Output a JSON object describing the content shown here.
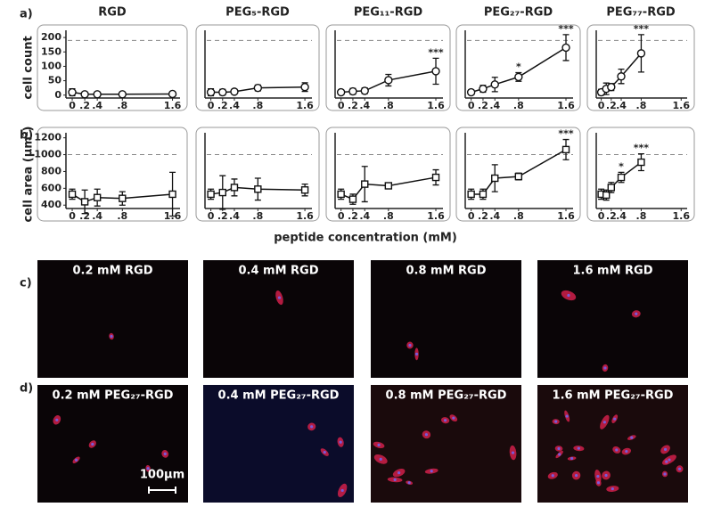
{
  "chart_data": [
    {
      "type": "line",
      "title": "RGD",
      "ylabel": "cell count",
      "marker": "circle",
      "x": [
        0,
        0.2,
        0.4,
        0.8,
        1.6
      ],
      "values": [
        10,
        3,
        3,
        3,
        4
      ],
      "errors": [
        12,
        4,
        3,
        3,
        3
      ],
      "xlim": [
        -0.1,
        1.72
      ],
      "xticks": [
        0,
        {
          "value": 0.2,
          "label": ".2"
        },
        {
          "value": 0.4,
          "label": ".4"
        },
        {
          "value": 0.8,
          "label": ".8"
        },
        1.6
      ],
      "ylim": [
        -10,
        225
      ],
      "yticks": [
        0,
        50,
        100,
        150,
        200
      ],
      "reference_line": 190,
      "annotations": []
    },
    {
      "type": "line",
      "title": "PEG₅-RGD",
      "marker": "circle",
      "x": [
        0,
        0.2,
        0.4,
        0.8,
        1.6
      ],
      "values": [
        10,
        10,
        12,
        25,
        28
      ],
      "errors": [
        12,
        10,
        8,
        10,
        15
      ],
      "xlim": [
        -0.1,
        1.72
      ],
      "xticks": [
        0,
        {
          "value": 0.2,
          "label": ".2"
        },
        {
          "value": 0.4,
          "label": ".4"
        },
        {
          "value": 0.8,
          "label": ".8"
        },
        1.6
      ],
      "ylim": [
        -10,
        225
      ],
      "reference_line": 190,
      "annotations": []
    },
    {
      "type": "line",
      "title": "PEG₁₁-RGD",
      "marker": "circle",
      "x": [
        0,
        0.2,
        0.4,
        0.8,
        1.6
      ],
      "values": [
        10,
        13,
        15,
        52,
        83
      ],
      "errors": [
        8,
        10,
        10,
        20,
        45
      ],
      "xlim": [
        -0.1,
        1.72
      ],
      "xticks": [
        0,
        {
          "value": 0.2,
          "label": ".2"
        },
        {
          "value": 0.4,
          "label": ".4"
        },
        {
          "value": 0.8,
          "label": ".8"
        },
        1.6
      ],
      "ylim": [
        -10,
        225
      ],
      "reference_line": 190,
      "annotations": [
        {
          "at": 4,
          "text": "***"
        }
      ]
    },
    {
      "type": "line",
      "title": "PEG₂₇-RGD",
      "marker": "circle",
      "x": [
        0,
        0.2,
        0.4,
        0.8,
        1.6
      ],
      "values": [
        10,
        22,
        37,
        63,
        165
      ],
      "errors": [
        8,
        12,
        25,
        15,
        45
      ],
      "xlim": [
        -0.1,
        1.72
      ],
      "xticks": [
        0,
        {
          "value": 0.2,
          "label": ".2"
        },
        {
          "value": 0.4,
          "label": ".4"
        },
        {
          "value": 0.8,
          "label": ".8"
        },
        1.6
      ],
      "ylim": [
        -10,
        225
      ],
      "reference_line": 190,
      "annotations": [
        {
          "at": 3,
          "text": "*"
        },
        {
          "at": 4,
          "text": "***"
        }
      ]
    },
    {
      "type": "line",
      "title": "PEG₇₇-RGD",
      "marker": "circle",
      "x": [
        0,
        0.1,
        0.2,
        0.4,
        0.8
      ],
      "values": [
        10,
        22,
        28,
        65,
        145
      ],
      "errors": [
        10,
        20,
        12,
        25,
        65
      ],
      "xlim": [
        -0.1,
        1.72
      ],
      "xticks": [
        0,
        {
          "value": 0.2,
          "label": ".2"
        },
        {
          "value": 0.4,
          "label": ".4"
        },
        {
          "value": 0.8,
          "label": ".8"
        },
        1.6
      ],
      "ylim": [
        -10,
        225
      ],
      "reference_line": 190,
      "annotations": [
        {
          "at": 4,
          "text": "***"
        }
      ]
    },
    {
      "type": "line",
      "ylabel": "cell area (µm²)",
      "marker": "square",
      "x": [
        0,
        0.2,
        0.4,
        0.8,
        1.6
      ],
      "values": [
        530,
        440,
        490,
        480,
        530
      ],
      "errors": [
        60,
        140,
        100,
        80,
        260
      ],
      "xlim": [
        -0.1,
        1.72
      ],
      "xticks": [
        0,
        {
          "value": 0.2,
          "label": ".2"
        },
        {
          "value": 0.4,
          "label": ".4"
        },
        {
          "value": 0.8,
          "label": ".8"
        },
        1.6
      ],
      "ylim": [
        360,
        1260
      ],
      "yticks": [
        400,
        600,
        800,
        1000,
        1200
      ],
      "reference_line": 1000,
      "annotations": []
    },
    {
      "type": "line",
      "marker": "square",
      "x": [
        0,
        0.2,
        0.4,
        0.8,
        1.6
      ],
      "values": [
        530,
        550,
        610,
        590,
        580
      ],
      "errors": [
        60,
        200,
        100,
        130,
        70
      ],
      "xlim": [
        -0.1,
        1.72
      ],
      "xticks": [
        0,
        {
          "value": 0.2,
          "label": ".2"
        },
        {
          "value": 0.4,
          "label": ".4"
        },
        {
          "value": 0.8,
          "label": ".8"
        },
        1.6
      ],
      "ylim": [
        360,
        1260
      ],
      "reference_line": 1000,
      "annotations": []
    },
    {
      "type": "line",
      "marker": "square",
      "x": [
        0,
        0.2,
        0.4,
        0.8,
        1.6
      ],
      "values": [
        530,
        470,
        650,
        630,
        730
      ],
      "errors": [
        60,
        60,
        210,
        20,
        90
      ],
      "xlim": [
        -0.1,
        1.72
      ],
      "xticks": [
        0,
        {
          "value": 0.2,
          "label": ".2"
        },
        {
          "value": 0.4,
          "label": ".4"
        },
        {
          "value": 0.8,
          "label": ".8"
        },
        1.6
      ],
      "ylim": [
        360,
        1260
      ],
      "reference_line": 1000,
      "annotations": []
    },
    {
      "type": "line",
      "marker": "square",
      "x": [
        0,
        0.2,
        0.4,
        0.8,
        1.6
      ],
      "values": [
        530,
        530,
        720,
        740,
        1060
      ],
      "errors": [
        60,
        60,
        160,
        40,
        120
      ],
      "xlim": [
        -0.1,
        1.72
      ],
      "xticks": [
        0,
        {
          "value": 0.2,
          "label": ".2"
        },
        {
          "value": 0.4,
          "label": ".4"
        },
        {
          "value": 0.8,
          "label": ".8"
        },
        1.6
      ],
      "ylim": [
        360,
        1260
      ],
      "reference_line": 1000,
      "annotations": [
        {
          "at": 4,
          "text": "***"
        }
      ]
    },
    {
      "type": "line",
      "marker": "square",
      "x": [
        0,
        0.1,
        0.2,
        0.4,
        0.8
      ],
      "values": [
        530,
        520,
        610,
        730,
        910
      ],
      "errors": [
        60,
        60,
        60,
        60,
        100
      ],
      "xlim": [
        -0.1,
        1.72
      ],
      "xticks": [
        0,
        {
          "value": 0.2,
          "label": ".2"
        },
        {
          "value": 0.4,
          "label": ".4"
        },
        {
          "value": 0.8,
          "label": ".8"
        },
        1.6
      ],
      "ylim": [
        360,
        1260
      ],
      "reference_line": 1000,
      "annotations": [
        {
          "at": 3,
          "text": "*"
        },
        {
          "at": 4,
          "text": "***"
        }
      ]
    }
  ],
  "xlabel": "peptide concentration (mM)",
  "panel_labels": [
    "a)",
    "b)",
    "c)",
    "d)"
  ],
  "images": {
    "c": [
      "0.2 mM RGD",
      "0.4 mM RGD",
      "0.8 mM RGD",
      "1.6 mM RGD"
    ],
    "d": [
      "0.2 mM PEG₂₇-RGD",
      "0.4 mM PEG₂₇-RGD",
      "0.8 mM PEG₂₇-RGD",
      "1.6 mM PEG₂₇-RGD"
    ]
  },
  "scale_bar": "100µm"
}
